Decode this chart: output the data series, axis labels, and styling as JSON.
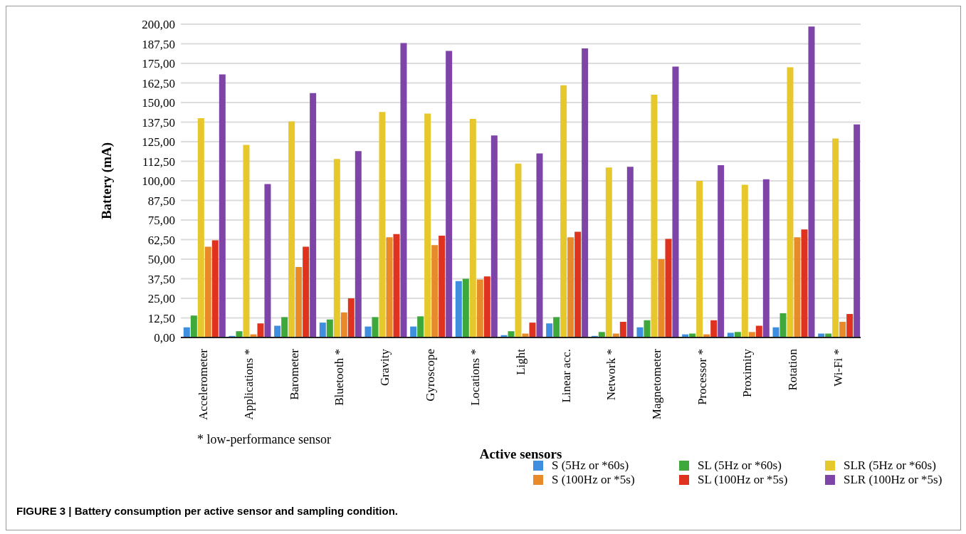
{
  "chart_data": {
    "type": "bar",
    "categories": [
      "Accelerometer",
      "Applications *",
      "Barometer",
      "Bluetooth *",
      "Gravity",
      "Gyroscope",
      "Locations *",
      "Light",
      "Linear acc.",
      "Network *",
      "Magnetometer",
      "Processor *",
      "Proximity",
      "Rotation",
      "Wi-Fi *"
    ],
    "series": [
      {
        "name": "S (5Hz or *60s)",
        "color": "#3f8fe0",
        "values": [
          6.5,
          1,
          7.5,
          9.5,
          7,
          7,
          36,
          1.5,
          9,
          1,
          6.5,
          2,
          3,
          6.5,
          2.5
        ]
      },
      {
        "name": "SL (5Hz or *60s)",
        "color": "#3fa83a",
        "values": [
          14,
          4,
          13,
          11.5,
          13,
          13.5,
          37.5,
          4,
          13,
          3.5,
          11,
          2.5,
          3.5,
          15.5,
          2.5
        ]
      },
      {
        "name": "SLR (5Hz or *60s)",
        "color": "#e6c72c",
        "values": [
          140,
          123,
          138,
          114,
          144,
          143,
          139.5,
          111,
          161,
          108.5,
          155,
          100,
          97.5,
          172.5,
          127
        ]
      },
      {
        "name": "S (100Hz or *5s)",
        "color": "#e8892a",
        "values": [
          58,
          2,
          45,
          16,
          64,
          59,
          37,
          2.5,
          64,
          2.5,
          50,
          2,
          3.5,
          64,
          10
        ]
      },
      {
        "name": "SL (100Hz or *5s)",
        "color": "#e0331f",
        "values": [
          62,
          9,
          58,
          25,
          66,
          65,
          39,
          9.5,
          67.5,
          10,
          63,
          11,
          7.5,
          69,
          15
        ]
      },
      {
        "name": "SLR (100Hz or *5s)",
        "color": "#7e44a8",
        "values": [
          168,
          98,
          156,
          119,
          188,
          183,
          129,
          117.5,
          184.5,
          109,
          173,
          110,
          101,
          198.5,
          136
        ]
      }
    ],
    "xlabel": "Active sensors",
    "ylabel": "Battery (mA)",
    "ylim": [
      0,
      200
    ],
    "yticks": [
      {
        "value": 0,
        "label": "0,00"
      },
      {
        "value": 12.5,
        "label": "12,50"
      },
      {
        "value": 25,
        "label": "25,00"
      },
      {
        "value": 37.5,
        "label": "37,50"
      },
      {
        "value": 50,
        "label": "50,00"
      },
      {
        "value": 62.5,
        "label": "62,50"
      },
      {
        "value": 75,
        "label": "75,00"
      },
      {
        "value": 87.5,
        "label": "87,50"
      },
      {
        "value": 100,
        "label": "100,00"
      },
      {
        "value": 112.5,
        "label": "112,50"
      },
      {
        "value": 125,
        "label": "125,00"
      },
      {
        "value": 137.5,
        "label": "137,50"
      },
      {
        "value": 150,
        "label": "150,00"
      },
      {
        "value": 162.5,
        "label": "162,50"
      },
      {
        "value": 175,
        "label": "175,00"
      },
      {
        "value": 187.5,
        "label": "187,50"
      },
      {
        "value": 200,
        "label": "200,00"
      }
    ],
    "grid": "y",
    "legend": "bottom",
    "annotations": [
      "* low-performance sensor",
      "FIGURE 3 | Battery consumption per active sensor and sampling condition."
    ]
  }
}
